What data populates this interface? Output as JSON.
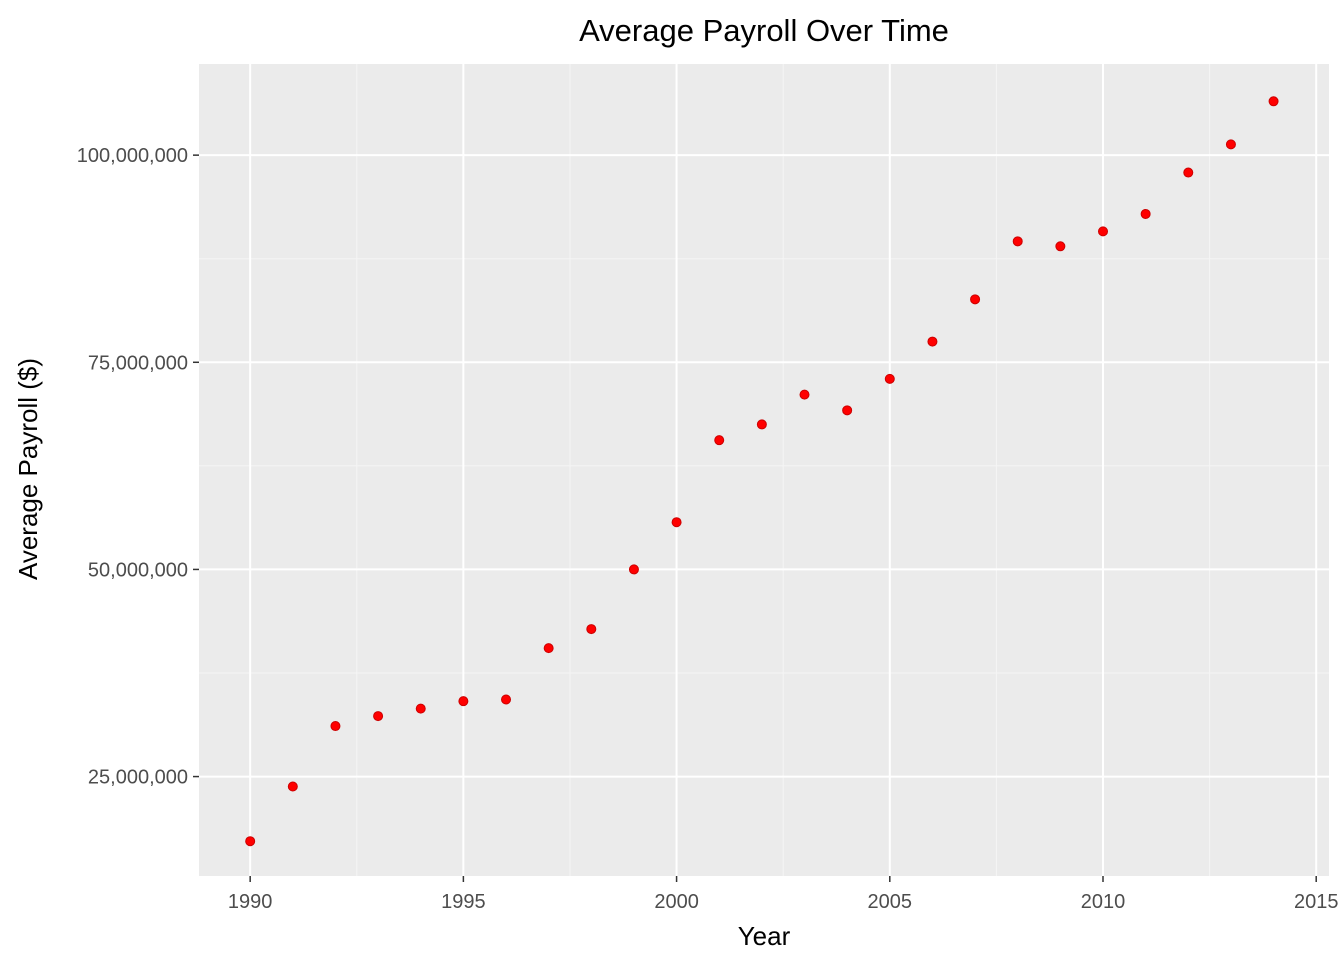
{
  "chart_data": {
    "type": "scatter",
    "title": "Average Payroll Over Time",
    "xlabel": "Year",
    "ylabel": "Average Payroll ($)",
    "xlim": [
      1988.8,
      2015.3
    ],
    "ylim": [
      13000000,
      111000000
    ],
    "x_ticks": [
      1990,
      1995,
      2000,
      2005,
      2010,
      2015
    ],
    "x_tick_labels": [
      "1990",
      "1995",
      "2000",
      "2005",
      "2010",
      "2015"
    ],
    "y_ticks": [
      25000000,
      50000000,
      75000000,
      100000000
    ],
    "y_tick_labels": [
      "25,000,000",
      "50,000,000",
      "75,000,000",
      "100,000,000"
    ],
    "grid": true,
    "legend": "none",
    "colors": {
      "point": "#ff0000",
      "panel_background": "#ebebeb",
      "grid_major": "#ffffff",
      "grid_minor": "#f5f5f5",
      "tick_label": "#4d4d4d"
    },
    "series": [
      {
        "x": [
          1990,
          1991,
          1992,
          1993,
          1994,
          1995,
          1996,
          1997,
          1998,
          1999,
          2000,
          2001,
          2002,
          2003,
          2004,
          2005,
          2006,
          2007,
          2008,
          2009,
          2010,
          2011,
          2012,
          2013,
          2014
        ],
        "y": [
          17200000,
          23800000,
          31100000,
          32300000,
          33200000,
          34100000,
          34300000,
          40500000,
          42800000,
          50000000,
          55700000,
          65600000,
          67500000,
          71100000,
          69200000,
          73000000,
          77500000,
          82600000,
          89600000,
          89000000,
          90800000,
          92900000,
          97900000,
          101300000,
          106500000
        ]
      }
    ]
  }
}
